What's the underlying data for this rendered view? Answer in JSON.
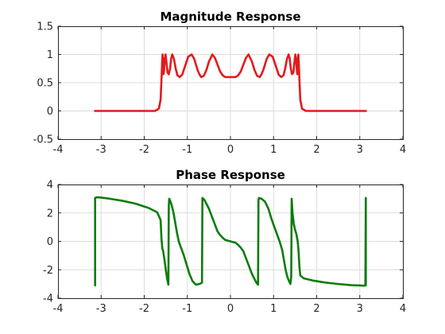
{
  "chart_data": [
    {
      "type": "line",
      "title": "Magnitude Response",
      "xlabel": "",
      "ylabel": "",
      "xlim": [
        -4,
        4
      ],
      "ylim": [
        -0.5,
        1.5
      ],
      "xticks": [
        -4,
        -3,
        -2,
        -1,
        0,
        1,
        2,
        3,
        4
      ],
      "xtick_labels": [
        "-4",
        "-3",
        "-2",
        "-1",
        "0",
        "1",
        "2",
        "3",
        "4"
      ],
      "yticks": [
        -0.5,
        0,
        0.5,
        1,
        1.5
      ],
      "ytick_labels": [
        "-0.5",
        "0",
        "0.5",
        "1",
        "1.5"
      ],
      "grid": true,
      "color": "#e31a1c",
      "series": [
        {
          "x": [
            -3.1416,
            -1.75,
            -1.66,
            -1.62,
            -1.6,
            -1.585,
            -1.575,
            -1.562,
            -1.552,
            -1.542,
            -1.525,
            -1.505,
            -1.49,
            -1.46,
            -1.43,
            -1.4,
            -1.375,
            -1.35,
            -1.31,
            -1.27,
            -1.23,
            -1.18,
            -1.12,
            -1.05,
            -0.98,
            -0.9,
            -0.84,
            -0.8,
            -0.76,
            -0.72,
            -0.68,
            -0.62,
            -0.56,
            -0.5,
            -0.42,
            -0.36,
            -0.3,
            -0.24,
            -0.18,
            -0.12,
            -0.06,
            0.0,
            0.06,
            0.12,
            0.18,
            0.24,
            0.3,
            0.36,
            0.42,
            0.5,
            0.56,
            0.62,
            0.68,
            0.72,
            0.76,
            0.8,
            0.84,
            0.9,
            0.98,
            1.05,
            1.12,
            1.18,
            1.23,
            1.27,
            1.31,
            1.35,
            1.375,
            1.4,
            1.43,
            1.46,
            1.49,
            1.505,
            1.525,
            1.542,
            1.552,
            1.562,
            1.575,
            1.585,
            1.6,
            1.62,
            1.66,
            1.75,
            3.1416
          ],
          "y": [
            0.0,
            0.0,
            0.04,
            0.2,
            0.55,
            0.85,
            1.0,
            0.8,
            0.65,
            0.7,
            0.92,
            1.0,
            0.9,
            0.68,
            0.65,
            0.75,
            0.93,
            1.0,
            0.92,
            0.75,
            0.63,
            0.6,
            0.64,
            0.8,
            0.96,
            1.0,
            0.92,
            0.82,
            0.72,
            0.65,
            0.6,
            0.62,
            0.72,
            0.87,
            1.0,
            0.94,
            0.82,
            0.7,
            0.63,
            0.6,
            0.6,
            0.6,
            0.6,
            0.6,
            0.63,
            0.7,
            0.82,
            0.94,
            1.0,
            0.87,
            0.72,
            0.62,
            0.6,
            0.65,
            0.72,
            0.82,
            0.92,
            1.0,
            0.96,
            0.8,
            0.64,
            0.6,
            0.63,
            0.75,
            0.92,
            1.0,
            0.93,
            0.75,
            0.65,
            0.68,
            0.9,
            1.0,
            0.92,
            0.7,
            0.65,
            0.8,
            1.0,
            0.85,
            0.55,
            0.2,
            0.04,
            0.0,
            0.0
          ]
        }
      ]
    },
    {
      "type": "line",
      "title": "Phase Response",
      "xlabel": "",
      "ylabel": "",
      "xlim": [
        -4,
        4
      ],
      "ylim": [
        -4,
        4
      ],
      "xticks": [
        -4,
        -3,
        -2,
        -1,
        0,
        1,
        2,
        3,
        4
      ],
      "xtick_labels": [
        "-4",
        "-3",
        "-2",
        "-1",
        "0",
        "1",
        "2",
        "3",
        "4"
      ],
      "yticks": [
        -4,
        -2,
        0,
        2,
        4
      ],
      "ytick_labels": [
        "-4",
        "-2",
        "0",
        "2",
        "4"
      ],
      "grid": true,
      "color": "#0a7d0a",
      "series": [
        {
          "x": [
            -3.14,
            -3.14,
            -3.1,
            -3.0,
            -2.8,
            -2.5,
            -2.2,
            -1.9,
            -1.7,
            -1.62,
            -1.6,
            -1.58,
            -1.56,
            -1.53,
            -1.5,
            -1.47,
            -1.44,
            -1.43,
            -1.42,
            -1.39,
            -1.36,
            -1.32,
            -1.28,
            -1.24,
            -1.2,
            -1.14,
            -1.08,
            -1.02,
            -0.95,
            -0.88,
            -0.8,
            -0.72,
            -0.66,
            -0.65,
            -0.6,
            -0.55,
            -0.5,
            -0.45,
            -0.4,
            -0.35,
            -0.3,
            -0.24,
            -0.18,
            -0.12,
            -0.06,
            0.0,
            0.06,
            0.12,
            0.18,
            0.24,
            0.3,
            0.35,
            0.4,
            0.45,
            0.5,
            0.55,
            0.6,
            0.64,
            0.65,
            0.66,
            0.72,
            0.8,
            0.88,
            0.95,
            1.02,
            1.08,
            1.14,
            1.2,
            1.24,
            1.28,
            1.32,
            1.36,
            1.39,
            1.41,
            1.42,
            1.43,
            1.44,
            1.47,
            1.5,
            1.53,
            1.56,
            1.58,
            1.6,
            1.62,
            1.7,
            1.9,
            2.2,
            2.5,
            2.8,
            3.0,
            3.1,
            3.12,
            3.13,
            3.14,
            3.14
          ],
          "y": [
            -3.1,
            3.05,
            3.1,
            3.08,
            3.0,
            2.85,
            2.65,
            2.35,
            2.05,
            1.5,
            0.2,
            -0.5,
            -0.7,
            -1.3,
            -2.0,
            -2.6,
            -3.05,
            2.5,
            3.0,
            2.8,
            2.5,
            2.0,
            1.3,
            0.6,
            0.0,
            -0.5,
            -1.0,
            -1.6,
            -2.3,
            -2.8,
            -3.05,
            -3.0,
            -2.9,
            3.05,
            2.9,
            2.6,
            2.3,
            1.9,
            1.5,
            1.1,
            0.7,
            0.45,
            0.25,
            0.1,
            0.05,
            0.0,
            -0.05,
            -0.1,
            -0.25,
            -0.45,
            -0.7,
            -1.1,
            -1.5,
            -1.9,
            -2.3,
            -2.6,
            -2.9,
            -3.05,
            2.9,
            3.05,
            3.0,
            2.8,
            2.3,
            1.6,
            1.0,
            0.5,
            0.0,
            -0.6,
            -1.3,
            -2.0,
            -2.5,
            -2.8,
            -3.0,
            -2.5,
            3.0,
            2.5,
            2.0,
            1.2,
            0.8,
            0.5,
            0.0,
            -0.7,
            -1.8,
            -2.4,
            -2.6,
            -2.75,
            -2.9,
            -3.0,
            -3.08,
            -3.1,
            -3.12,
            -3.1,
            -3.0,
            3.05,
            -3.1
          ]
        }
      ]
    }
  ]
}
